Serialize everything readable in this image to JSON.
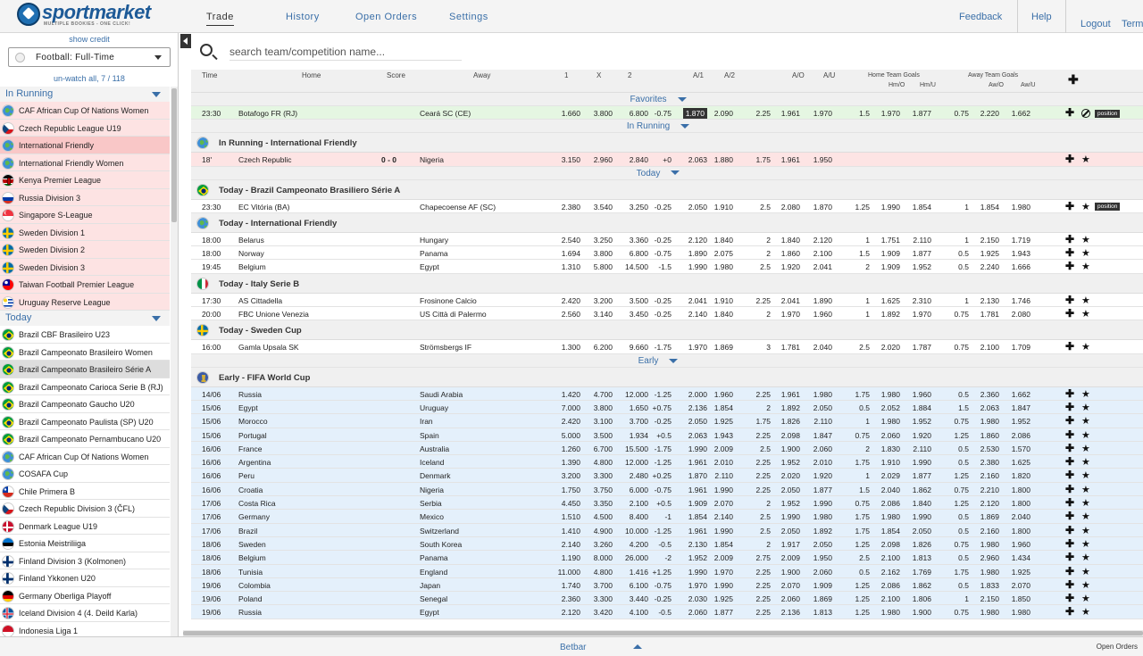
{
  "app": {
    "logo_text": "sportmarket",
    "logo_tagline": "MULTIPLE BOOKIES - ONE CLICK!"
  },
  "nav": [
    {
      "label": "Trade",
      "active": true
    },
    {
      "label": "History",
      "active": false
    },
    {
      "label": "Open Orders",
      "active": false
    },
    {
      "label": "Settings",
      "active": false
    }
  ],
  "header_right": {
    "feedback": "Feedback",
    "help": "Help",
    "logout": "Logout",
    "terms": "Term"
  },
  "sidebar": {
    "show_credit": "show credit",
    "sport_select": "Football: Full-Time",
    "unwatch": "un-watch all, 7 / 118",
    "sections": [
      {
        "title": "In Running",
        "kind": "run",
        "items": [
          {
            "label": "CAF African Cup Of Nations Women",
            "flag": "globe"
          },
          {
            "label": "Czech Republic League U19",
            "flag": "cz"
          },
          {
            "label": "International Friendly",
            "flag": "globe",
            "selected": true
          },
          {
            "label": "International Friendly Women",
            "flag": "globe"
          },
          {
            "label": "Kenya Premier League",
            "flag": "ke"
          },
          {
            "label": "Russia Division 3",
            "flag": "ru"
          },
          {
            "label": "Singapore S-League",
            "flag": "sg"
          },
          {
            "label": "Sweden Division 1",
            "flag": "se"
          },
          {
            "label": "Sweden Division 2",
            "flag": "se"
          },
          {
            "label": "Sweden Division 3",
            "flag": "se"
          },
          {
            "label": "Taiwan Football Premier League",
            "flag": "tw"
          },
          {
            "label": "Uruguay Reserve League",
            "flag": "uy"
          }
        ]
      },
      {
        "title": "Today",
        "kind": "today",
        "items": [
          {
            "label": "Brazil CBF Brasileiro U23",
            "flag": "br"
          },
          {
            "label": "Brazil Campeonato Brasileiro Women",
            "flag": "br"
          },
          {
            "label": "Brazil Campeonato Brasileiro Série A",
            "flag": "br",
            "selected": true
          },
          {
            "label": "Brazil Campeonato Carioca Serie B (RJ)",
            "flag": "br"
          },
          {
            "label": "Brazil Campeonato Gaucho U20",
            "flag": "br"
          },
          {
            "label": "Brazil Campeonato Paulista (SP) U20",
            "flag": "br"
          },
          {
            "label": "Brazil Campeonato Pernambucano U20",
            "flag": "br"
          },
          {
            "label": "CAF African Cup Of Nations Women",
            "flag": "globe"
          },
          {
            "label": "COSAFA Cup",
            "flag": "globe"
          },
          {
            "label": "Chile Primera B",
            "flag": "cl"
          },
          {
            "label": "Czech Republic Division 3 (ČFL)",
            "flag": "cz"
          },
          {
            "label": "Denmark League U19",
            "flag": "dk"
          },
          {
            "label": "Estonia Meistriliiga",
            "flag": "ee"
          },
          {
            "label": "Finland Division 3 (Kolmonen)",
            "flag": "fi"
          },
          {
            "label": "Finland Ykkonen U20",
            "flag": "fi"
          },
          {
            "label": "Germany Oberliga Playoff",
            "flag": "de"
          },
          {
            "label": "Iceland Division 4 (4. Deild Karla)",
            "flag": "is"
          },
          {
            "label": "Indonesia Liga 1",
            "flag": "id"
          }
        ]
      }
    ]
  },
  "search": {
    "placeholder": "search team/competition name..."
  },
  "columns": {
    "time": "Time",
    "home": "Home",
    "score": "Score",
    "away": "Away",
    "c1": "1",
    "cx": "X",
    "c2": "2",
    "a1": "A/1",
    "a2": "A/2",
    "ao": "A/O",
    "au": "A/U",
    "htg": "Home Team Goals",
    "hmo": "Hm/O",
    "hmu": "Hm/U",
    "atg": "Away Team Goals",
    "awo": "Aw/O",
    "awu": "Aw/U"
  },
  "labels": {
    "position": "position"
  },
  "blocks": [
    {
      "type": "section",
      "label": "Favorites"
    },
    {
      "type": "row",
      "style": "fav",
      "hl": true,
      "pos": true,
      "noent": true,
      "star": false,
      "cells": [
        "23:30",
        "Botafogo FR (RJ)",
        "",
        "Ceará SC (CE)",
        "1.660",
        "3.800",
        "6.800",
        "-0.75",
        "1.870",
        "2.090",
        "2.25",
        "1.961",
        "1.970",
        "1.5",
        "1.970",
        "1.877",
        "0.75",
        "2.220",
        "1.662"
      ]
    },
    {
      "type": "section",
      "label": "In Running"
    },
    {
      "type": "comp",
      "label": "In Running - International Friendly",
      "flag": "globe"
    },
    {
      "type": "row",
      "style": "inrun",
      "star": true,
      "cells": [
        "18'",
        "Czech Republic",
        "0 - 0",
        "Nigeria",
        "3.150",
        "2.960",
        "2.840",
        "+0",
        "2.063",
        "1.880",
        "1.75",
        "1.961",
        "1.950",
        "",
        "",
        "",
        "",
        "",
        ""
      ]
    },
    {
      "type": "section",
      "label": "Today"
    },
    {
      "type": "comp",
      "label": "Today - Brazil Campeonato Brasiliero Série A",
      "flag": "br"
    },
    {
      "type": "row",
      "style": "today",
      "star": true,
      "pos": true,
      "cells": [
        "23:30",
        "EC Vitória (BA)",
        "",
        "Chapecoense AF (SC)",
        "2.380",
        "3.540",
        "3.250",
        "-0.25",
        "2.050",
        "1.910",
        "2.5",
        "2.080",
        "1.870",
        "1.25",
        "1.990",
        "1.854",
        "1",
        "1.854",
        "1.980"
      ]
    },
    {
      "type": "comp",
      "label": "Today - International Friendly",
      "flag": "globe"
    },
    {
      "type": "row",
      "style": "today",
      "star": true,
      "cells": [
        "18:00",
        "Belarus",
        "",
        "Hungary",
        "2.540",
        "3.250",
        "3.360",
        "-0.25",
        "2.120",
        "1.840",
        "2",
        "1.840",
        "2.120",
        "1",
        "1.751",
        "2.110",
        "1",
        "2.150",
        "1.719"
      ]
    },
    {
      "type": "row",
      "style": "today",
      "star": true,
      "cells": [
        "18:00",
        "Norway",
        "",
        "Panama",
        "1.694",
        "3.800",
        "6.800",
        "-0.75",
        "1.890",
        "2.075",
        "2",
        "1.860",
        "2.100",
        "1.5",
        "1.909",
        "1.877",
        "0.5",
        "1.925",
        "1.943"
      ]
    },
    {
      "type": "row",
      "style": "today",
      "star": true,
      "cells": [
        "19:45",
        "Belgium",
        "",
        "Egypt",
        "1.310",
        "5.800",
        "14.500",
        "-1.5",
        "1.990",
        "1.980",
        "2.5",
        "1.920",
        "2.041",
        "2",
        "1.909",
        "1.952",
        "0.5",
        "2.240",
        "1.666"
      ]
    },
    {
      "type": "comp",
      "label": "Today - Italy Serie B",
      "flag": "it"
    },
    {
      "type": "row",
      "style": "today",
      "star": true,
      "cells": [
        "17:30",
        "AS Cittadella",
        "",
        "Frosinone Calcio",
        "2.420",
        "3.200",
        "3.500",
        "-0.25",
        "2.041",
        "1.910",
        "2.25",
        "2.041",
        "1.890",
        "1",
        "1.625",
        "2.310",
        "1",
        "2.130",
        "1.746"
      ]
    },
    {
      "type": "row",
      "style": "today",
      "star": true,
      "cells": [
        "20:00",
        "FBC Unione Venezia",
        "",
        "US Città di Palermo",
        "2.560",
        "3.140",
        "3.450",
        "-0.25",
        "2.140",
        "1.840",
        "2",
        "1.970",
        "1.960",
        "1",
        "1.892",
        "1.970",
        "0.75",
        "1.781",
        "2.080"
      ]
    },
    {
      "type": "comp",
      "label": "Today - Sweden Cup",
      "flag": "se"
    },
    {
      "type": "row",
      "style": "today",
      "star": true,
      "cells": [
        "16:00",
        "Gamla Upsala SK",
        "",
        "Strömsbergs IF",
        "1.300",
        "6.200",
        "9.660",
        "-1.75",
        "1.970",
        "1.869",
        "3",
        "1.781",
        "2.040",
        "2.5",
        "2.020",
        "1.787",
        "0.75",
        "2.100",
        "1.709"
      ]
    },
    {
      "type": "section",
      "label": "Early"
    },
    {
      "type": "comp",
      "label": "Early - FIFA World Cup",
      "flag": "wc"
    },
    {
      "type": "row",
      "style": "early",
      "star": true,
      "cells": [
        "14/06",
        "Russia",
        "",
        "Saudi Arabia",
        "1.420",
        "4.700",
        "12.000",
        "-1.25",
        "2.000",
        "1.960",
        "2.25",
        "1.961",
        "1.980",
        "1.75",
        "1.980",
        "1.960",
        "0.5",
        "2.360",
        "1.662"
      ]
    },
    {
      "type": "row",
      "style": "early",
      "star": true,
      "cells": [
        "15/06",
        "Egypt",
        "",
        "Uruguay",
        "7.000",
        "3.800",
        "1.650",
        "+0.75",
        "2.136",
        "1.854",
        "2",
        "1.892",
        "2.050",
        "0.5",
        "2.052",
        "1.884",
        "1.5",
        "2.063",
        "1.847"
      ]
    },
    {
      "type": "row",
      "style": "early",
      "star": true,
      "cells": [
        "15/06",
        "Morocco",
        "",
        "Iran",
        "2.420",
        "3.100",
        "3.700",
        "-0.25",
        "2.050",
        "1.925",
        "1.75",
        "1.826",
        "2.110",
        "1",
        "1.980",
        "1.952",
        "0.75",
        "1.980",
        "1.952"
      ]
    },
    {
      "type": "row",
      "style": "early",
      "star": true,
      "cells": [
        "15/06",
        "Portugal",
        "",
        "Spain",
        "5.000",
        "3.500",
        "1.934",
        "+0.5",
        "2.063",
        "1.943",
        "2.25",
        "2.098",
        "1.847",
        "0.75",
        "2.060",
        "1.920",
        "1.25",
        "1.860",
        "2.086"
      ]
    },
    {
      "type": "row",
      "style": "early",
      "star": true,
      "cells": [
        "16/06",
        "France",
        "",
        "Australia",
        "1.260",
        "6.700",
        "15.500",
        "-1.75",
        "1.990",
        "2.009",
        "2.5",
        "1.900",
        "2.060",
        "2",
        "1.830",
        "2.110",
        "0.5",
        "2.530",
        "1.570"
      ]
    },
    {
      "type": "row",
      "style": "early",
      "star": true,
      "cells": [
        "16/06",
        "Argentina",
        "",
        "Iceland",
        "1.390",
        "4.800",
        "12.000",
        "-1.25",
        "1.961",
        "2.010",
        "2.25",
        "1.952",
        "2.010",
        "1.75",
        "1.910",
        "1.990",
        "0.5",
        "2.380",
        "1.625"
      ]
    },
    {
      "type": "row",
      "style": "early",
      "star": true,
      "cells": [
        "16/06",
        "Peru",
        "",
        "Denmark",
        "3.200",
        "3.300",
        "2.480",
        "+0.25",
        "1.870",
        "2.110",
        "2.25",
        "2.020",
        "1.920",
        "1",
        "2.029",
        "1.877",
        "1.25",
        "2.160",
        "1.820"
      ]
    },
    {
      "type": "row",
      "style": "early",
      "star": true,
      "cells": [
        "16/06",
        "Croatia",
        "",
        "Nigeria",
        "1.750",
        "3.750",
        "6.000",
        "-0.75",
        "1.961",
        "1.990",
        "2.25",
        "2.050",
        "1.877",
        "1.5",
        "2.040",
        "1.862",
        "0.75",
        "2.210",
        "1.800"
      ]
    },
    {
      "type": "row",
      "style": "early",
      "star": true,
      "cells": [
        "17/06",
        "Costa Rica",
        "",
        "Serbia",
        "4.450",
        "3.350",
        "2.100",
        "+0.5",
        "1.909",
        "2.070",
        "2",
        "1.952",
        "1.990",
        "0.75",
        "2.086",
        "1.840",
        "1.25",
        "2.120",
        "1.800"
      ]
    },
    {
      "type": "row",
      "style": "early",
      "star": true,
      "cells": [
        "17/06",
        "Germany",
        "",
        "Mexico",
        "1.510",
        "4.500",
        "8.400",
        "-1",
        "1.854",
        "2.140",
        "2.5",
        "1.990",
        "1.980",
        "1.75",
        "1.980",
        "1.990",
        "0.5",
        "1.869",
        "2.040"
      ]
    },
    {
      "type": "row",
      "style": "early",
      "star": true,
      "cells": [
        "17/06",
        "Brazil",
        "",
        "Switzerland",
        "1.410",
        "4.900",
        "10.000",
        "-1.25",
        "1.961",
        "1.990",
        "2.5",
        "2.050",
        "1.892",
        "1.75",
        "1.854",
        "2.050",
        "0.5",
        "2.160",
        "1.800"
      ]
    },
    {
      "type": "row",
      "style": "early",
      "star": true,
      "cells": [
        "18/06",
        "Sweden",
        "",
        "South Korea",
        "2.140",
        "3.260",
        "4.200",
        "-0.5",
        "2.130",
        "1.854",
        "2",
        "1.917",
        "2.050",
        "1.25",
        "2.098",
        "1.826",
        "0.75",
        "1.980",
        "1.960"
      ]
    },
    {
      "type": "row",
      "style": "early",
      "star": true,
      "cells": [
        "18/06",
        "Belgium",
        "",
        "Panama",
        "1.190",
        "8.000",
        "26.000",
        "-2",
        "1.952",
        "2.009",
        "2.75",
        "2.009",
        "1.950",
        "2.5",
        "2.100",
        "1.813",
        "0.5",
        "2.960",
        "1.434"
      ]
    },
    {
      "type": "row",
      "style": "early",
      "star": true,
      "cells": [
        "18/06",
        "Tunisia",
        "",
        "England",
        "11.000",
        "4.800",
        "1.416",
        "+1.25",
        "1.990",
        "1.970",
        "2.25",
        "1.900",
        "2.060",
        "0.5",
        "2.162",
        "1.769",
        "1.75",
        "1.980",
        "1.925"
      ]
    },
    {
      "type": "row",
      "style": "early",
      "star": true,
      "cells": [
        "19/06",
        "Colombia",
        "",
        "Japan",
        "1.740",
        "3.700",
        "6.100",
        "-0.75",
        "1.970",
        "1.990",
        "2.25",
        "2.070",
        "1.909",
        "1.25",
        "2.086",
        "1.862",
        "0.5",
        "1.833",
        "2.070"
      ]
    },
    {
      "type": "row",
      "style": "early",
      "star": true,
      "cells": [
        "19/06",
        "Poland",
        "",
        "Senegal",
        "2.360",
        "3.300",
        "3.440",
        "-0.25",
        "2.030",
        "1.925",
        "2.25",
        "2.060",
        "1.869",
        "1.25",
        "2.100",
        "1.806",
        "1",
        "2.150",
        "1.850"
      ]
    },
    {
      "type": "row",
      "style": "early",
      "star": true,
      "cells": [
        "19/06",
        "Russia",
        "",
        "Egypt",
        "2.120",
        "3.420",
        "4.100",
        "-0.5",
        "2.060",
        "1.877",
        "2.25",
        "2.136",
        "1.813",
        "1.25",
        "1.980",
        "1.900",
        "0.75",
        "1.980",
        "1.980"
      ]
    }
  ],
  "bottom": {
    "betbar": "Betbar",
    "open_orders": "Open Orders"
  }
}
